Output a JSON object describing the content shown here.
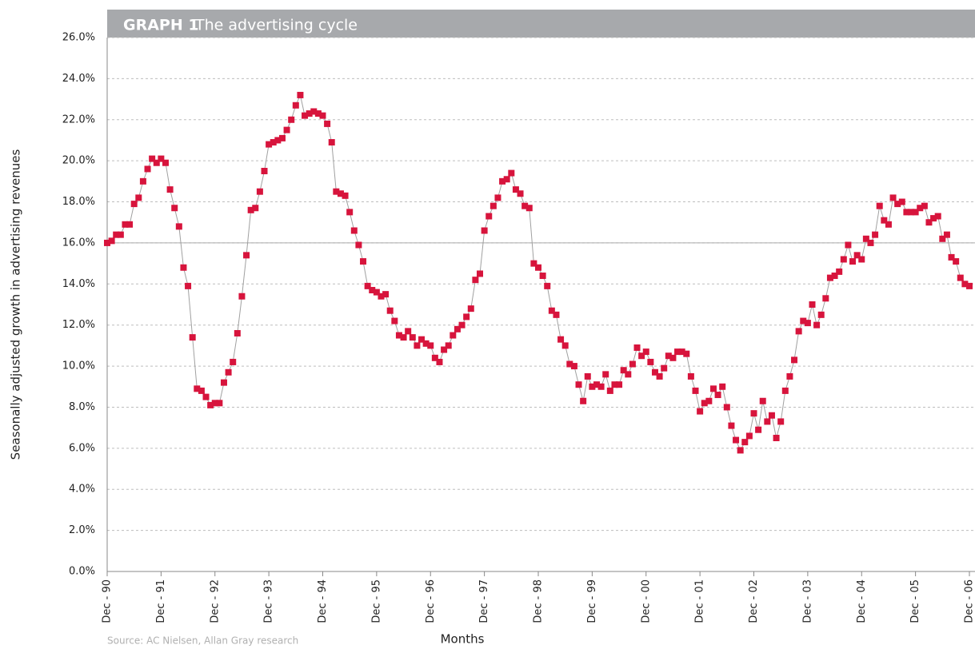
{
  "chart_data": {
    "type": "line",
    "title_label": "GRAPH 1",
    "title": "The advertising cycle",
    "y_label": "Seasonally adjusted growth in advertising revenues",
    "x_label": "Months",
    "source": "Source: AC Nielsen, Allan Gray research",
    "categories": [
      "Dec - 90",
      null,
      null,
      null,
      null,
      null,
      null,
      null,
      null,
      null,
      null,
      null,
      "Dec - 91",
      null,
      null,
      null,
      null,
      null,
      null,
      null,
      null,
      null,
      null,
      null,
      "Dec - 92",
      null,
      null,
      null,
      null,
      null,
      null,
      null,
      null,
      null,
      null,
      null,
      "Dec - 93",
      null,
      null,
      null,
      null,
      null,
      null,
      null,
      null,
      null,
      null,
      null,
      "Dec - 94",
      null,
      null,
      null,
      null,
      null,
      null,
      null,
      null,
      null,
      null,
      null,
      "Dec - 95",
      null,
      null,
      null,
      null,
      null,
      null,
      null,
      null,
      null,
      null,
      null,
      "Dec - 96",
      null,
      null,
      null,
      null,
      null,
      null,
      null,
      null,
      null,
      null,
      null,
      "Dec - 97",
      null,
      null,
      null,
      null,
      null,
      null,
      null,
      null,
      null,
      null,
      null,
      "Dec - 98",
      null,
      null,
      null,
      null,
      null,
      null,
      null,
      null,
      null,
      null,
      null,
      "Dec - 99",
      null,
      null,
      null,
      null,
      null,
      null,
      null,
      null,
      null,
      null,
      null,
      "Dec - 00",
      null,
      null,
      null,
      null,
      null,
      null,
      null,
      null,
      null,
      null,
      null,
      "Dec - 01",
      null,
      null,
      null,
      null,
      null,
      null,
      null,
      null,
      null,
      null,
      null,
      "Dec - 02",
      null,
      null,
      null,
      null,
      null,
      null,
      null,
      null,
      null,
      null,
      null,
      "Dec - 03",
      null,
      null,
      null,
      null,
      null,
      null,
      null,
      null,
      null,
      null,
      null,
      "Dec - 04",
      null,
      null,
      null,
      null,
      null,
      null,
      null,
      null,
      null,
      null,
      null,
      "Dec - 05",
      null,
      null,
      null,
      null,
      null,
      null,
      null,
      null,
      null,
      null,
      null,
      "Dec - 06"
    ],
    "values": [
      16.0,
      16.1,
      16.4,
      16.4,
      16.9,
      16.9,
      17.9,
      18.2,
      19.0,
      19.6,
      20.1,
      19.9,
      20.1,
      19.9,
      18.6,
      17.7,
      16.8,
      14.8,
      13.9,
      11.4,
      8.9,
      8.8,
      8.5,
      8.1,
      8.2,
      8.2,
      9.2,
      9.7,
      10.2,
      11.6,
      13.4,
      15.4,
      17.6,
      17.7,
      18.5,
      19.5,
      20.8,
      20.9,
      21.0,
      21.1,
      21.5,
      22.0,
      22.7,
      23.2,
      22.2,
      22.3,
      22.4,
      22.3,
      22.2,
      21.8,
      20.9,
      18.5,
      18.4,
      18.3,
      17.5,
      16.6,
      15.9,
      15.1,
      13.9,
      13.7,
      13.6,
      13.4,
      13.5,
      12.7,
      12.2,
      11.5,
      11.4,
      11.7,
      11.4,
      11.0,
      11.3,
      11.1,
      11.0,
      10.4,
      10.2,
      10.8,
      11.0,
      11.5,
      11.8,
      12.0,
      12.4,
      12.8,
      14.2,
      14.5,
      16.6,
      17.3,
      17.8,
      18.2,
      19.0,
      19.1,
      19.4,
      18.6,
      18.4,
      17.8,
      17.7,
      15.0,
      14.8,
      14.4,
      13.9,
      12.7,
      12.5,
      11.3,
      11.0,
      10.1,
      10.0,
      9.1,
      8.3,
      9.5,
      9.0,
      9.1,
      9.0,
      9.6,
      8.8,
      9.1,
      9.1,
      9.8,
      9.6,
      10.1,
      10.9,
      10.5,
      10.7,
      10.2,
      9.7,
      9.5,
      9.9,
      10.5,
      10.4,
      10.7,
      10.7,
      10.6,
      9.5,
      8.8,
      7.8,
      8.2,
      8.3,
      8.9,
      8.6,
      9.0,
      8.0,
      7.1,
      6.4,
      5.9,
      6.3,
      6.6,
      7.7,
      6.9,
      8.3,
      7.3,
      7.6,
      6.5,
      7.3,
      8.8,
      9.5,
      10.3,
      11.7,
      12.2,
      12.1,
      13.0,
      12.0,
      12.5,
      13.3,
      14.3,
      14.4,
      14.6,
      15.2,
      15.9,
      15.1,
      15.4,
      15.2,
      16.2,
      16.0,
      16.4,
      17.8,
      17.1,
      16.9,
      18.2,
      17.9,
      18.0,
      17.5,
      17.5,
      17.5,
      17.7,
      17.8,
      17.0,
      17.2,
      17.3,
      16.2,
      16.4,
      15.3,
      15.1,
      14.3,
      14.0,
      13.9
    ],
    "color": "#d7143c",
    "line_color": "#a0a0a0",
    "ylim": [
      0,
      26
    ],
    "yticks": [
      {
        "value": 0,
        "label": "0.0%"
      },
      {
        "value": 2,
        "label": "2.0%"
      },
      {
        "value": 4,
        "label": "4.0%"
      },
      {
        "value": 6,
        "label": "6.0%"
      },
      {
        "value": 8,
        "label": "8.0%"
      },
      {
        "value": 10,
        "label": "10.0%"
      },
      {
        "value": 12,
        "label": "12.0%"
      },
      {
        "value": 14,
        "label": "14.0%"
      },
      {
        "value": 16,
        "label": "16.0%"
      },
      {
        "value": 18,
        "label": "18.0%"
      },
      {
        "value": 20,
        "label": "20.0%"
      },
      {
        "value": 22,
        "label": "22.0%"
      },
      {
        "value": 24,
        "label": "24.0%"
      },
      {
        "value": 26,
        "label": "26.0%"
      }
    ],
    "hline": 16,
    "grid": true
  }
}
